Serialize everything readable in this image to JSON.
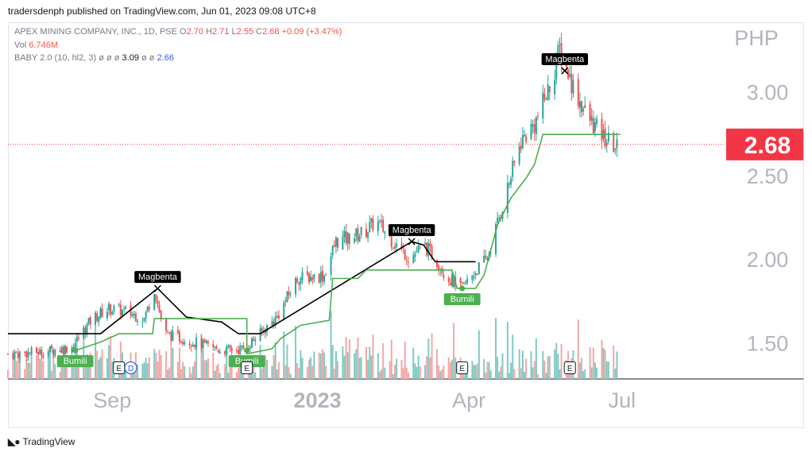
{
  "header": {
    "published": "tradersdenph published on TradingView.com, Jun 01, 2023 09:08 UTC+8"
  },
  "legend": {
    "symbol": "APEX MINING COMPANY, INC., 1D, PSE",
    "o_label": "O",
    "o": "2.70",
    "h_label": "H",
    "h": "2.71",
    "l_label": "L",
    "l": "2.55",
    "c_label": "C",
    "c": "2.68",
    "change": "+0.09 (+3.47%)",
    "vol_label": "Vol",
    "vol": "6.746M",
    "baby_label": "BABY 2.0 (10, hl2, 3)",
    "baby_nulls": "ø ø ø",
    "baby_v1": "3.09",
    "baby_nulls2": "ø ø",
    "baby_v2": "2.66"
  },
  "footer": {
    "brand": "TradingView"
  },
  "colors": {
    "up": "#26a69a",
    "down": "#ef5350",
    "support": "#4caf50",
    "resist": "#000000",
    "vol_up": "#80cbc4",
    "vol_down": "#f4a7a7",
    "price_tag": "#f23645"
  },
  "chart_data": {
    "type": "candlestick",
    "currency": "PHP",
    "last_price": "2.68",
    "y_ticks": [
      "1.50",
      "2.00",
      "2.50",
      "3.00"
    ],
    "ylim": [
      1.28,
      3.4
    ],
    "x_tick_labels": [
      {
        "label": "Sep",
        "date": "2022-09-01",
        "bold": false
      },
      {
        "label": "2023",
        "date": "2023-01-01",
        "bold": true
      },
      {
        "label": "Apr",
        "date": "2023-04-01",
        "bold": false
      },
      {
        "label": "Jul",
        "date": "2023-07-01",
        "bold": false
      }
    ],
    "x_range": [
      "2022-07-01",
      "2023-08-31"
    ],
    "price_path": [
      [
        "2022-07-01",
        1.43
      ],
      [
        "2022-07-20",
        1.44
      ],
      [
        "2022-08-08",
        1.47
      ],
      [
        "2022-08-20",
        1.64
      ],
      [
        "2022-08-30",
        1.7
      ],
      [
        "2022-09-10",
        1.68
      ],
      [
        "2022-09-20",
        1.64
      ],
      [
        "2022-09-26",
        1.82
      ],
      [
        "2022-10-02",
        1.55
      ],
      [
        "2022-10-20",
        1.5
      ],
      [
        "2022-11-05",
        1.45
      ],
      [
        "2022-11-18",
        1.46
      ],
      [
        "2022-11-28",
        1.55
      ],
      [
        "2022-12-08",
        1.65
      ],
      [
        "2022-12-20",
        1.88
      ],
      [
        "2023-01-05",
        1.9
      ],
      [
        "2023-01-12",
        2.1
      ],
      [
        "2023-01-28",
        2.15
      ],
      [
        "2023-02-05",
        2.22
      ],
      [
        "2023-02-15",
        2.1
      ],
      [
        "2023-02-25",
        2.0
      ],
      [
        "2023-03-05",
        2.08
      ],
      [
        "2023-03-12",
        2.0
      ],
      [
        "2023-03-20",
        1.88
      ],
      [
        "2023-03-28",
        1.82
      ],
      [
        "2023-04-03",
        1.9
      ],
      [
        "2023-04-12",
        2.0
      ],
      [
        "2023-04-22",
        2.35
      ],
      [
        "2023-05-02",
        2.7
      ],
      [
        "2023-05-10",
        2.8
      ],
      [
        "2023-05-20",
        3.05
      ],
      [
        "2023-05-25",
        3.25
      ],
      [
        "2023-06-01",
        3.05
      ],
      [
        "2023-06-10",
        2.85
      ],
      [
        "2023-06-20",
        2.72
      ],
      [
        "2023-06-28",
        2.66
      ]
    ],
    "support_line": [
      [
        "2022-08-10",
        1.45
      ],
      [
        "2022-08-25",
        1.5
      ],
      [
        "2022-09-05",
        1.55
      ],
      [
        "2022-09-25",
        1.55
      ],
      [
        "2022-09-26",
        1.64
      ],
      [
        "2022-10-05",
        1.64
      ],
      [
        "2022-11-20",
        1.64
      ],
      [
        "2022-11-20",
        1.43
      ],
      [
        "2022-12-05",
        1.46
      ],
      [
        "2022-12-10",
        1.52
      ],
      [
        "2022-12-22",
        1.6
      ],
      [
        "2023-01-08",
        1.63
      ],
      [
        "2023-01-10",
        1.88
      ],
      [
        "2023-01-25",
        1.88
      ],
      [
        "2023-01-30",
        1.93
      ],
      [
        "2023-03-22",
        1.93
      ],
      [
        "2023-03-25",
        1.82
      ],
      [
        "2023-04-05",
        1.82
      ],
      [
        "2023-04-10",
        1.9
      ],
      [
        "2023-04-18",
        2.2
      ],
      [
        "2023-04-26",
        2.36
      ],
      [
        "2023-05-05",
        2.48
      ],
      [
        "2023-05-10",
        2.56
      ],
      [
        "2023-05-15",
        2.74
      ],
      [
        "2023-06-30",
        2.74
      ]
    ],
    "resistance_line": [
      [
        "2022-07-01",
        1.55
      ],
      [
        "2022-08-10",
        1.55
      ],
      [
        "2022-08-25",
        1.55
      ],
      [
        "2022-09-28",
        1.82
      ],
      [
        "2022-10-15",
        1.65
      ],
      [
        "2022-11-05",
        1.62
      ],
      [
        "2022-11-15",
        1.55
      ],
      [
        "2022-11-28",
        1.55
      ],
      [
        "2023-02-26",
        2.1
      ],
      [
        "2023-03-05",
        2.08
      ],
      [
        "2023-03-12",
        1.98
      ],
      [
        "2023-03-25",
        1.98
      ],
      [
        "2023-04-05",
        1.98
      ]
    ],
    "signals": [
      {
        "label": "Bumili",
        "kind": "buy",
        "date": "2022-08-10",
        "price": 1.45
      },
      {
        "label": "Magbenta",
        "kind": "sell",
        "date": "2022-09-28",
        "price": 1.82
      },
      {
        "label": "Bumili",
        "kind": "buy",
        "date": "2022-11-20",
        "price": 1.45
      },
      {
        "label": "Magbenta",
        "kind": "sell",
        "date": "2023-02-26",
        "price": 2.1
      },
      {
        "label": "Bumili",
        "kind": "buy",
        "date": "2023-03-28",
        "price": 1.82
      },
      {
        "label": "Magbenta",
        "kind": "sell",
        "date": "2023-05-28",
        "price": 3.12
      }
    ],
    "events": [
      {
        "label": "E",
        "date": "2022-09-05",
        "style": "earnings"
      },
      {
        "label": "D",
        "date": "2022-09-12",
        "style": "dividend"
      },
      {
        "label": "E",
        "date": "2022-11-20",
        "style": "earnings"
      },
      {
        "label": "E",
        "date": "2023-03-28",
        "style": "earnings"
      },
      {
        "label": "E",
        "date": "2023-05-31",
        "style": "earnings"
      }
    ]
  }
}
